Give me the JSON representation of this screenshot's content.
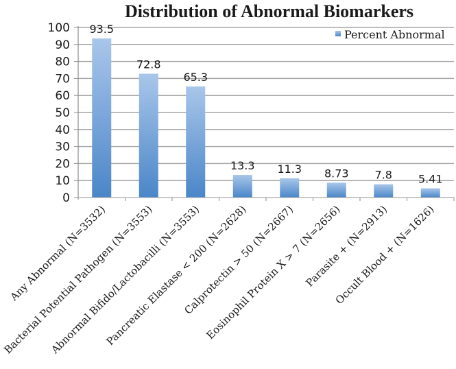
{
  "chart_data": {
    "type": "bar",
    "title": "Distribution of Abnormal Biomarkers",
    "xlabel": "",
    "ylabel": "",
    "ylim": [
      0,
      100
    ],
    "yticks": [
      0,
      10,
      20,
      30,
      40,
      50,
      60,
      70,
      80,
      90,
      100
    ],
    "grid": true,
    "legend": {
      "position": "top-right",
      "entries": [
        "Percent Abnormal"
      ]
    },
    "categories": [
      "Any Abnormal (N=3532)",
      "Bacterial Potential Pathogen (N=3553)",
      "Abnormal Bifido/Lactobacilli (N=3553)",
      "Pancreatic Elastase  < 200 (N=2628)",
      "Calprotectin > 50 (N=2667)",
      "Eosinophil Protein X > 7 (N=2656)",
      "Parasite + (N=2913)",
      "Occult Blood + (N=1626)"
    ],
    "series": [
      {
        "name": "Percent Abnormal",
        "values": [
          93.5,
          72.8,
          65.3,
          13.3,
          11.3,
          8.73,
          7.8,
          5.41
        ],
        "labels": [
          "93.5",
          "72.8",
          "65.3",
          "13.3",
          "11.3",
          "8.73",
          "7.8",
          "5.41"
        ],
        "color_top": "#a9c6ea",
        "color_bottom": "#4a86c8"
      }
    ]
  },
  "colors": {
    "grid": "#a6a6a6",
    "axis": "#8c8c8c",
    "bar_top": "#a9c6ea",
    "bar_bottom": "#4a86c8"
  }
}
